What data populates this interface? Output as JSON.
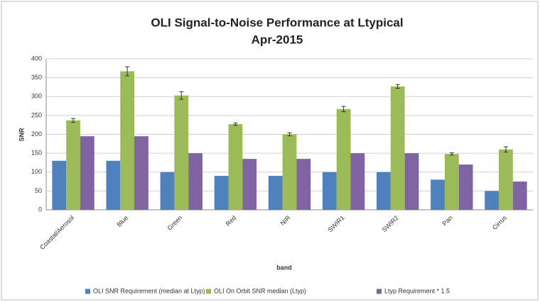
{
  "chart_data": {
    "type": "bar",
    "title": [
      "OLI Signal-to-Noise Performance at Ltypical",
      "Apr-2015"
    ],
    "x_label": "band",
    "y_label": "SNR",
    "categories": [
      "Coastal/Aerosol",
      "Blue",
      "Green",
      "Red",
      "NIR",
      "SWIR1",
      "SWIR2",
      "Pan",
      "Cirrus"
    ],
    "series": [
      {
        "name": "OLI SNR Requirement (median at Ltyp)",
        "color": "#4f81bd",
        "values": [
          130,
          130,
          100,
          90,
          90,
          100,
          100,
          80,
          50
        ]
      },
      {
        "name": "OLI On Orbit SNR median (Ltyp)",
        "color": "#9bbb59",
        "values": [
          237,
          367,
          303,
          227,
          200,
          267,
          327,
          148,
          160
        ],
        "errors": [
          5,
          12,
          10,
          3,
          4,
          7,
          5,
          3,
          7
        ]
      },
      {
        "name": "Ltyp Requirement * 1.5",
        "color": "#8064a2",
        "values": [
          195,
          195,
          150,
          135,
          135,
          150,
          150,
          120,
          75
        ]
      }
    ],
    "ylim": [
      0,
      400
    ],
    "yticks": [
      0,
      50,
      100,
      150,
      200,
      250,
      300,
      350,
      400
    ],
    "grid": true,
    "legend": "bottom"
  }
}
